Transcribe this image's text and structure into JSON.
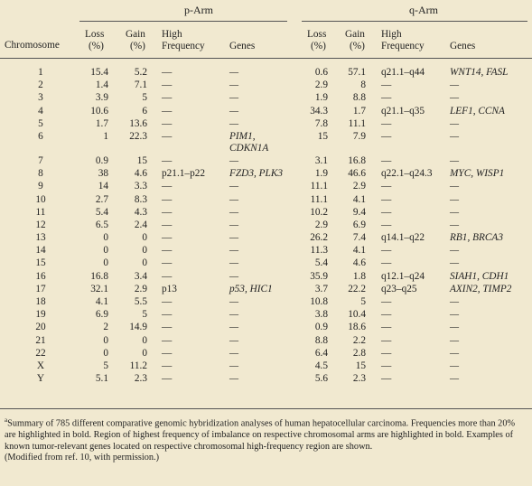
{
  "table": {
    "p_arm_title": "p-Arm",
    "q_arm_title": "q-Arm",
    "col_chromosome": "Chromosome",
    "p_headers": {
      "loss": "Loss",
      "loss_unit": "(%)",
      "gain": "Gain",
      "gain_unit": "(%)",
      "high": "High",
      "frequency": "Frequency",
      "genes": "Genes"
    },
    "q_headers": {
      "loss": "Loss",
      "loss_unit": "(%)",
      "gain": "Gain",
      "gain_unit": "(%)",
      "high": "High",
      "frequency": "Frequency",
      "genes": "Genes"
    },
    "rows": [
      {
        "chr": "1",
        "p_loss": "15.4",
        "p_gain": "5.2",
        "p_high": "—",
        "p_genes": "—",
        "p_genes2": "",
        "q_loss": "0.6",
        "q_gain": "57.1",
        "q_high": "q21.1–q44",
        "q_genes": "WNT14, FASL"
      },
      {
        "chr": "2",
        "p_loss": "1.4",
        "p_gain": "7.1",
        "p_high": "—",
        "p_genes": "—",
        "p_genes2": "",
        "q_loss": "2.9",
        "q_gain": "8",
        "q_high": "—",
        "q_genes": "—"
      },
      {
        "chr": "3",
        "p_loss": "3.9",
        "p_gain": "5",
        "p_high": "—",
        "p_genes": "—",
        "p_genes2": "",
        "q_loss": "1.9",
        "q_gain": "8.8",
        "q_high": "—",
        "q_genes": "—"
      },
      {
        "chr": "4",
        "p_loss": "10.6",
        "p_gain": "6",
        "p_high": "—",
        "p_genes": "—",
        "p_genes2": "",
        "q_loss": "34.3",
        "q_gain": "1.7",
        "q_high": "q21.1–q35",
        "q_genes": "LEF1, CCNA"
      },
      {
        "chr": "5",
        "p_loss": "1.7",
        "p_gain": "13.6",
        "p_high": "—",
        "p_genes": "—",
        "p_genes2": "",
        "q_loss": "7.8",
        "q_gain": "11.1",
        "q_high": "—",
        "q_genes": "—"
      },
      {
        "chr": "6",
        "p_loss": "1",
        "p_gain": "22.3",
        "p_high": "—",
        "p_genes": "PIM1,",
        "p_genes2": "CDKN1A",
        "q_loss": "15",
        "q_gain": "7.9",
        "q_high": "—",
        "q_genes": "—"
      },
      {
        "chr": "7",
        "p_loss": "0.9",
        "p_gain": "15",
        "p_high": "—",
        "p_genes": "—",
        "p_genes2": "",
        "q_loss": "3.1",
        "q_gain": "16.8",
        "q_high": "—",
        "q_genes": "—"
      },
      {
        "chr": "8",
        "p_loss": "38",
        "p_gain": "4.6",
        "p_high": "p21.1–p22",
        "p_genes": "FZD3, PLK3",
        "p_genes2": "",
        "q_loss": "1.9",
        "q_gain": "46.6",
        "q_high": "q22.1–q24.3",
        "q_genes": "MYC, WISP1"
      },
      {
        "chr": "9",
        "p_loss": "14",
        "p_gain": "3.3",
        "p_high": "—",
        "p_genes": "—",
        "p_genes2": "",
        "q_loss": "11.1",
        "q_gain": "2.9",
        "q_high": "—",
        "q_genes": "—"
      },
      {
        "chr": "10",
        "p_loss": "2.7",
        "p_gain": "8.3",
        "p_high": "—",
        "p_genes": "—",
        "p_genes2": "",
        "q_loss": "11.1",
        "q_gain": "4.1",
        "q_high": "—",
        "q_genes": "—"
      },
      {
        "chr": "11",
        "p_loss": "5.4",
        "p_gain": "4.3",
        "p_high": "—",
        "p_genes": "—",
        "p_genes2": "",
        "q_loss": "10.2",
        "q_gain": "9.4",
        "q_high": "—",
        "q_genes": "—"
      },
      {
        "chr": "12",
        "p_loss": "6.5",
        "p_gain": "2.4",
        "p_high": "—",
        "p_genes": "—",
        "p_genes2": "",
        "q_loss": "2.9",
        "q_gain": "6.9",
        "q_high": "—",
        "q_genes": "—"
      },
      {
        "chr": "13",
        "p_loss": "0",
        "p_gain": "0",
        "p_high": "—",
        "p_genes": "—",
        "p_genes2": "",
        "q_loss": "26.2",
        "q_gain": "7.4",
        "q_high": "q14.1–q22",
        "q_genes": "RB1, BRCA3"
      },
      {
        "chr": "14",
        "p_loss": "0",
        "p_gain": "0",
        "p_high": "—",
        "p_genes": "—",
        "p_genes2": "",
        "q_loss": "11.3",
        "q_gain": "4.1",
        "q_high": "—",
        "q_genes": "—"
      },
      {
        "chr": "15",
        "p_loss": "0",
        "p_gain": "0",
        "p_high": "—",
        "p_genes": "—",
        "p_genes2": "",
        "q_loss": "5.4",
        "q_gain": "4.6",
        "q_high": "—",
        "q_genes": "—"
      },
      {
        "chr": "16",
        "p_loss": "16.8",
        "p_gain": "3.4",
        "p_high": "—",
        "p_genes": "—",
        "p_genes2": "",
        "q_loss": "35.9",
        "q_gain": "1.8",
        "q_high": "q12.1–q24",
        "q_genes": "SIAH1, CDH1"
      },
      {
        "chr": "17",
        "p_loss": "32.1",
        "p_gain": "2.9",
        "p_high": "p13",
        "p_genes": "p53, HIC1",
        "p_genes2": "",
        "q_loss": "3.7",
        "q_gain": "22.2",
        "q_high": "q23–q25",
        "q_genes": "AXIN2, TIMP2"
      },
      {
        "chr": "18",
        "p_loss": "4.1",
        "p_gain": "5.5",
        "p_high": "—",
        "p_genes": "—",
        "p_genes2": "",
        "q_loss": "10.8",
        "q_gain": "5",
        "q_high": "—",
        "q_genes": "—"
      },
      {
        "chr": "19",
        "p_loss": "6.9",
        "p_gain": "5",
        "p_high": "—",
        "p_genes": "—",
        "p_genes2": "",
        "q_loss": "3.8",
        "q_gain": "10.4",
        "q_high": "—",
        "q_genes": "—"
      },
      {
        "chr": "20",
        "p_loss": "2",
        "p_gain": "14.9",
        "p_high": "—",
        "p_genes": "—",
        "p_genes2": "",
        "q_loss": "0.9",
        "q_gain": "18.6",
        "q_high": "—",
        "q_genes": "—"
      },
      {
        "chr": "21",
        "p_loss": "0",
        "p_gain": "0",
        "p_high": "—",
        "p_genes": "—",
        "p_genes2": "",
        "q_loss": "8.8",
        "q_gain": "2.2",
        "q_high": "—",
        "q_genes": "—"
      },
      {
        "chr": "22",
        "p_loss": "0",
        "p_gain": "0",
        "p_high": "—",
        "p_genes": "—",
        "p_genes2": "",
        "q_loss": "6.4",
        "q_gain": "2.8",
        "q_high": "—",
        "q_genes": "—"
      },
      {
        "chr": "X",
        "p_loss": "5",
        "p_gain": "11.2",
        "p_high": "—",
        "p_genes": "—",
        "p_genes2": "",
        "q_loss": "4.5",
        "q_gain": "15",
        "q_high": "—",
        "q_genes": "—"
      },
      {
        "chr": "Y",
        "p_loss": "5.1",
        "p_gain": "2.3",
        "p_high": "—",
        "p_genes": "—",
        "p_genes2": "",
        "q_loss": "5.6",
        "q_gain": "2.3",
        "q_high": "—",
        "q_genes": "—"
      }
    ]
  },
  "footnote": {
    "marker": "a",
    "text": "Summary of 785 different comparative genomic hybridization analyses of human hepatocellular carcinoma. Frequencies more than 20% are highlighted in bold. Region of highest frequency of imbalance on respective chromosomal arms are highlighted in bold. Examples of known tumor-relevant genes located on respective chromosomal high-frequency region are shown.",
    "source": "(Modified from ref. 10, with permission.)"
  }
}
